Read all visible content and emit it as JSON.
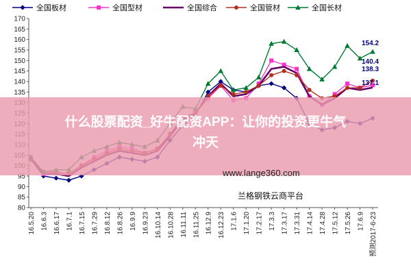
{
  "chart_data": {
    "type": "line",
    "title": "",
    "xlabel": "",
    "ylabel": "",
    "ylim": [
      80,
      170
    ],
    "yticks": [
      80,
      85,
      90,
      95,
      100,
      105,
      110,
      115,
      120,
      125,
      130,
      135,
      140,
      145,
      150,
      155,
      160,
      165,
      170
    ],
    "grid": false,
    "legend_placement": "top",
    "x": [
      "16.5.20",
      "16.6.3",
      "16.6.17",
      "16.7.1",
      "16.7.15",
      "16.7.29",
      "16.8.12",
      "16.8.26",
      "16.9.9",
      "16.9.23",
      "16.10.14",
      "16.10.28",
      "16.11.11",
      "16.11.25",
      "16.12.9",
      "16.12.23",
      "17.1.6",
      "17.1.20",
      "17.2.17",
      "17.3.3",
      "17.3.17",
      "17.3.31",
      "17.4.14",
      "17.4.28",
      "17.5.12",
      "17.5.26",
      "17.6.9",
      "预测2017-6-23"
    ],
    "series": [
      {
        "name": "全国板材",
        "color": "#000080",
        "marker": "diamond",
        "values": [
          103,
          95,
          94,
          93,
          95,
          98,
          101,
          104,
          103,
          102,
          104,
          112,
          119,
          124,
          135,
          140,
          136,
          135,
          138,
          139,
          137,
          132,
          120,
          117,
          118,
          121,
          120,
          122.5
        ]
      },
      {
        "name": "全国型材",
        "color": "#ff33cc",
        "marker": "square",
        "values": [
          104,
          96,
          97,
          96,
          100,
          104,
          107,
          109,
          108,
          106,
          108,
          115,
          123,
          125,
          132,
          138,
          131,
          132,
          139,
          150,
          148,
          146,
          133,
          129,
          134,
          139,
          137,
          138.3
        ]
      },
      {
        "name": "全国综合",
        "color": "#660066",
        "marker": "none",
        "values": [
          103,
          96,
          96,
          95,
          99,
          102,
          105,
          107,
          106,
          105,
          107,
          114,
          122,
          125,
          133,
          139,
          133,
          134,
          138,
          146,
          147,
          144,
          133,
          129,
          132,
          137,
          136,
          137.1
        ]
      },
      {
        "name": "全国管材",
        "color": "#b03020",
        "marker": "circle",
        "values": [
          103,
          97,
          97,
          96,
          100,
          103,
          106,
          108,
          107,
          106,
          108,
          115,
          123,
          125,
          133,
          138,
          134,
          135,
          138,
          143,
          145,
          143,
          136,
          132,
          133,
          137,
          137,
          140.4
        ]
      },
      {
        "name": "全国长材",
        "color": "#007a33",
        "marker": "triangle",
        "values": [
          104,
          97,
          98,
          98,
          104,
          107,
          109,
          111,
          110,
          109,
          112,
          120,
          128,
          127,
          139,
          145,
          136,
          137,
          142,
          158,
          159,
          155,
          146,
          141,
          147,
          157,
          151,
          154.2
        ]
      }
    ],
    "end_labels": [
      "154.2",
      "140.4",
      "138.3",
      "137.1"
    ]
  },
  "overlay": {
    "banner_line1": "什么股票配资_好牛配资APP：让你的投资更牛气",
    "banner_line2": "冲天",
    "watermark_url": "www.lange360.com",
    "watermark_cn": "兰格钢铁云商平台"
  }
}
